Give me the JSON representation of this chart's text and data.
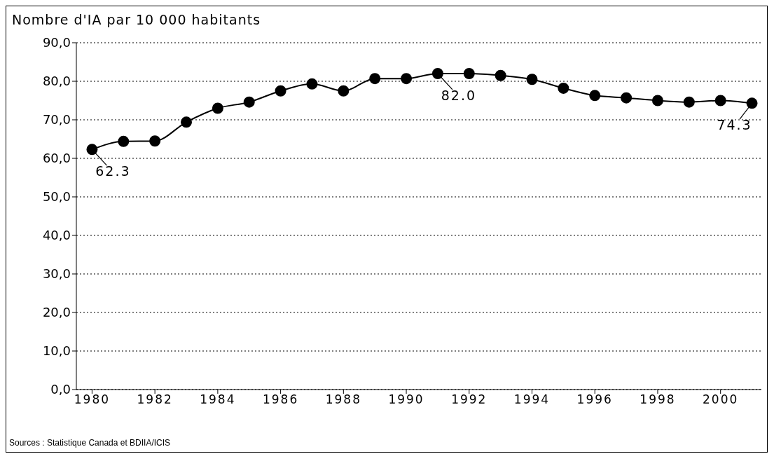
{
  "chart_data": {
    "type": "line",
    "title": "Nombre d'IA par 10 000 habitants",
    "x": [
      1980,
      1981,
      1982,
      1983,
      1984,
      1985,
      1986,
      1987,
      1988,
      1989,
      1990,
      1991,
      1992,
      1993,
      1994,
      1995,
      1996,
      1997,
      1998,
      1999,
      2000,
      2001
    ],
    "series": [
      {
        "color": "#000000",
        "values": [
          62.3,
          64.4,
          64.5,
          69.4,
          73.0,
          74.6,
          77.5,
          79.3,
          77.5,
          80.7,
          80.7,
          82.0,
          82.0,
          81.5,
          80.5,
          78.2,
          76.3,
          75.7,
          75.0,
          74.6,
          75.0,
          74.3
        ],
        "value_labels": [
          "62.3",
          null,
          null,
          null,
          null,
          null,
          null,
          null,
          null,
          null,
          null,
          "82.0",
          null,
          null,
          null,
          null,
          null,
          null,
          null,
          null,
          null,
          "74.3"
        ]
      }
    ],
    "xlim": [
      1979.5,
      2001.3
    ],
    "xticks": [
      1980,
      1982,
      1984,
      1986,
      1988,
      1990,
      1992,
      1994,
      1996,
      1998,
      2000
    ],
    "ylim": [
      0,
      90
    ],
    "yticks": [
      {
        "value": 0,
        "label": "0,0"
      },
      {
        "value": 10,
        "label": "10,0"
      },
      {
        "value": 20,
        "label": "20,0"
      },
      {
        "value": 30,
        "label": "30,0"
      },
      {
        "value": 40,
        "label": "40,0"
      },
      {
        "value": 50,
        "label": "50,0"
      },
      {
        "value": 60,
        "label": "60,0"
      },
      {
        "value": 70,
        "label": "70,0"
      },
      {
        "value": 80,
        "label": "80,0"
      },
      {
        "value": 90,
        "label": "90,0"
      }
    ],
    "grid": "y",
    "marker": "circle",
    "line_style": "solid",
    "annotations": [
      "Sources : Statistique Canada et BDIIA/ICIS"
    ]
  }
}
